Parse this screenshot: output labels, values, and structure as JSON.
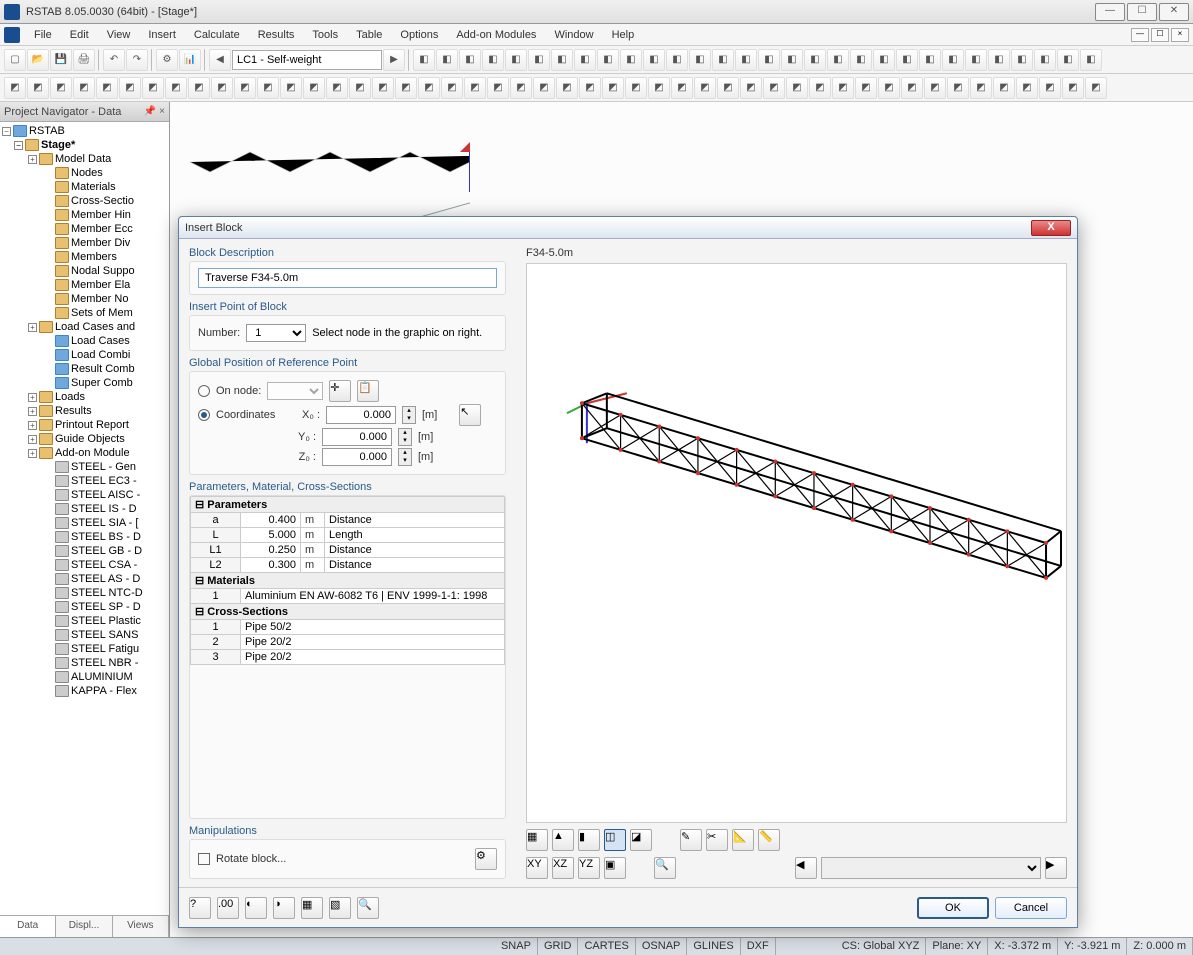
{
  "window": {
    "title": "RSTAB 8.05.0030 (64bit) - [Stage*]",
    "min": "—",
    "max": "☐",
    "close": "✕"
  },
  "menu": [
    "File",
    "Edit",
    "View",
    "Insert",
    "Calculate",
    "Results",
    "Tools",
    "Table",
    "Options",
    "Add-on Modules",
    "Window",
    "Help"
  ],
  "loadcase": "LC1 - Self-weight",
  "navigator": {
    "title": "Project Navigator - Data",
    "root": "RSTAB",
    "project": "Stage*",
    "modelData": "Model Data",
    "modelItems": [
      "Nodes",
      "Materials",
      "Cross-Sectio",
      "Member Hin",
      "Member Ecc",
      "Member Div",
      "Members",
      "Nodal Suppo",
      "Member Ela",
      "Member No",
      "Sets of Mem"
    ],
    "loadCasesGroup": "Load Cases and",
    "loadCasesItems": [
      "Load Cases",
      "Load Combi",
      "Result Comb",
      "Super Comb"
    ],
    "otherTop": [
      "Loads",
      "Results",
      "Printout Report",
      "Guide Objects"
    ],
    "addonGroup": "Add-on Module",
    "addons": [
      "STEEL - Gen",
      "STEEL EC3 -",
      "STEEL AISC -",
      "STEEL IS - D",
      "STEEL SIA - [",
      "STEEL BS - D",
      "STEEL GB - D",
      "STEEL CSA -",
      "STEEL AS - D",
      "STEEL NTC-D",
      "STEEL SP - D",
      "STEEL Plastic",
      "STEEL SANS",
      "STEEL Fatigu",
      "STEEL NBR -",
      "ALUMINIUM",
      "KAPPA - Flex"
    ],
    "tabs": [
      "Data",
      "Displ...",
      "Views"
    ]
  },
  "dialog": {
    "title": "Insert Block",
    "blockDescLabel": "Block Description",
    "blockDesc": "Traverse F34-5.0m",
    "insertPointLabel": "Insert Point of Block",
    "numberLabel": "Number:",
    "numberValue": "1",
    "numberHint": "Select node in the graphic on right.",
    "globalPosLabel": "Global Position of Reference Point",
    "onNode": "On node:",
    "coordinates": "Coordinates",
    "x0": "X₀ :",
    "y0": "Y₀ :",
    "z0": "Z₀ :",
    "xval": "0.000",
    "yval": "0.000",
    "zval": "0.000",
    "unit_m": "[m]",
    "paramsLabel": "Parameters, Material, Cross-Sections",
    "section_params": "Parameters",
    "section_materials": "Materials",
    "section_cross": "Cross-Sections",
    "params": [
      {
        "name": "a",
        "val": "0.400",
        "unit": "m",
        "desc": "Distance"
      },
      {
        "name": "L",
        "val": "5.000",
        "unit": "m",
        "desc": "Length"
      },
      {
        "name": "L1",
        "val": "0.250",
        "unit": "m",
        "desc": "Distance"
      },
      {
        "name": "L2",
        "val": "0.300",
        "unit": "m",
        "desc": "Distance"
      }
    ],
    "materials": [
      {
        "idx": "1",
        "desc": "Aluminium EN AW-6082 T6 | ENV 1999-1-1: 1998"
      }
    ],
    "cross": [
      {
        "idx": "1",
        "desc": "Pipe 50/2"
      },
      {
        "idx": "2",
        "desc": "Pipe 20/2"
      },
      {
        "idx": "3",
        "desc": "Pipe 20/2"
      }
    ],
    "manipLabel": "Manipulations",
    "rotateBlock": "Rotate block...",
    "previewLabel": "F34-5.0m",
    "ok": "OK",
    "cancel": "Cancel"
  },
  "status": {
    "snap": "SNAP",
    "grid": "GRID",
    "cartes": "CARTES",
    "osnap": "OSNAP",
    "glines": "GLINES",
    "dxf": "DXF",
    "cs": "CS: Global XYZ",
    "plane": "Plane: XY",
    "x": "X:  -3.372 m",
    "y": "Y:  -3.921 m",
    "z": "Z:  0.000 m"
  },
  "colors": {
    "truss": "#8aa0a0",
    "dialogBorder": "#5a7fa8",
    "groupHeader": "#2a5a8a"
  }
}
